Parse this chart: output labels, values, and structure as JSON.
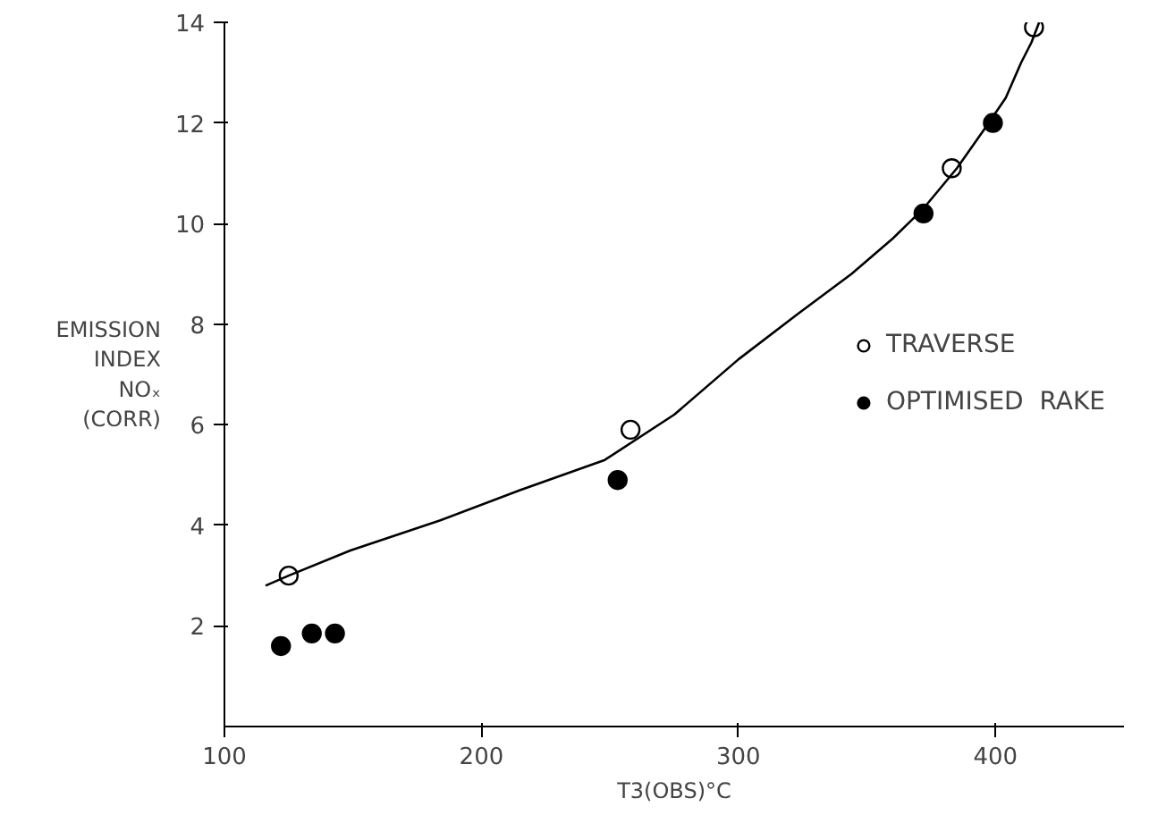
{
  "chart_data": {
    "type": "scatter",
    "xlabel": "T3(OBS)°C",
    "ylabel": "EMISSION\nINDEX\nNOₓ\n(CORR)",
    "xlim": [
      100,
      450
    ],
    "ylim": [
      0,
      14
    ],
    "xticks": [
      100,
      200,
      300,
      400
    ],
    "yticks": [
      2,
      4,
      6,
      8,
      10,
      12,
      14
    ],
    "grid": false,
    "legend": "right",
    "series": [
      {
        "name": "TRAVERSE",
        "color": "#ffffff",
        "marker": "circle",
        "x": [
          125,
          258,
          383,
          415
        ],
        "values": [
          3.0,
          5.9,
          11.1,
          13.9
        ]
      },
      {
        "name": "OPTIMISED  RAKE",
        "color": "#000000",
        "marker": "circle",
        "x": [
          122,
          134,
          143,
          253,
          372,
          399
        ],
        "values": [
          1.6,
          1.85,
          1.85,
          4.9,
          10.2,
          12.0
        ]
      },
      {
        "type": "line",
        "color": "#000000",
        "x": [
          116,
          125,
          149,
          184,
          215,
          248,
          275,
          300,
          323,
          344,
          360,
          372,
          385,
          396,
          404,
          410,
          414,
          417
        ],
        "values": [
          2.8,
          3.0,
          3.5,
          4.1,
          4.7,
          5.3,
          6.2,
          7.3,
          8.2,
          9.0,
          9.7,
          10.3,
          11.1,
          11.9,
          12.5,
          13.2,
          13.6,
          14.0
        ]
      }
    ]
  }
}
